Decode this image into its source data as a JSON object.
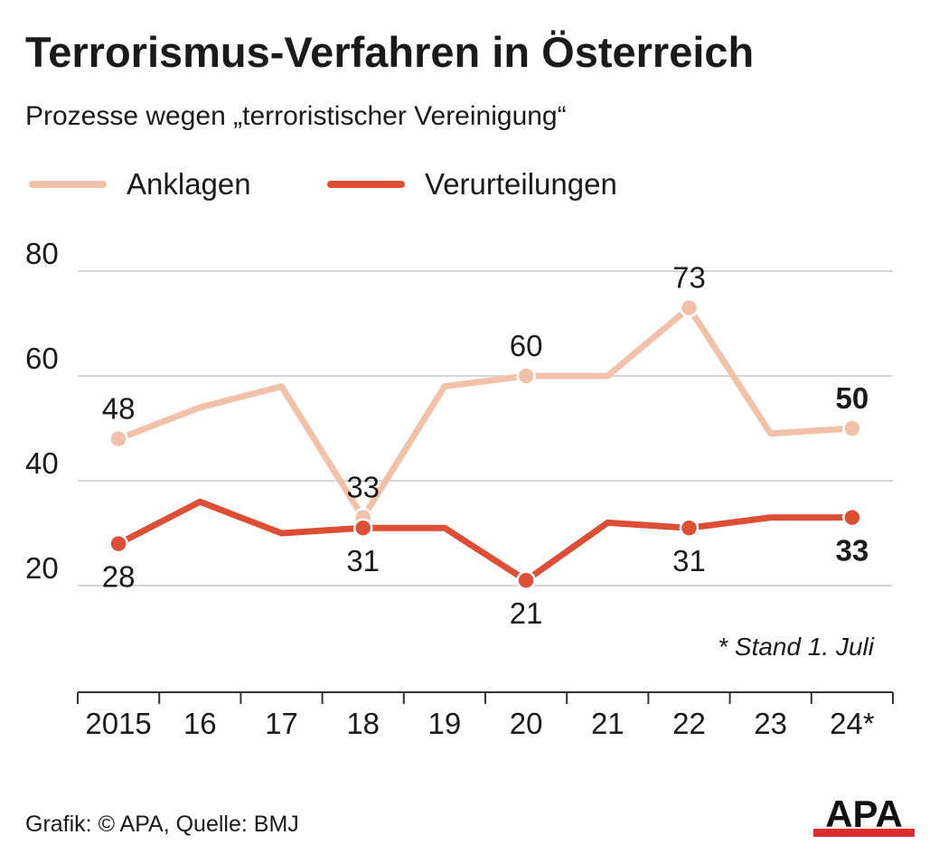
{
  "header": {
    "title": "Terrorismus-Verfahren in Österreich",
    "subtitle": "Prozesse wegen „terroristischer Vereinigung“"
  },
  "colors": {
    "anklagen": "#f2c1aa",
    "verurteilungen": "#dd4f35",
    "grid": "#d6d6d6",
    "axis": "#333333",
    "text": "#1a1a1a"
  },
  "chart_data": {
    "type": "line",
    "title": "Terrorismus-Verfahren in Österreich",
    "subtitle": "Prozesse wegen „terroristischer Vereinigung“",
    "categories": [
      "2015",
      "16",
      "17",
      "18",
      "19",
      "20",
      "21",
      "22",
      "23",
      "24*"
    ],
    "ylim": [
      0,
      80
    ],
    "yticks": [
      20,
      40,
      60,
      80
    ],
    "grid": true,
    "legend_position": "top-left",
    "series": [
      {
        "name": "Anklagen",
        "color": "#f2c1aa",
        "values": [
          48,
          54,
          58,
          33,
          58,
          60,
          60,
          73,
          49,
          50
        ],
        "marked": [
          0,
          3,
          5,
          7,
          9
        ],
        "labels": [
          {
            "index": 0,
            "text": "48",
            "pos": "above",
            "bold": false
          },
          {
            "index": 3,
            "text": "33",
            "pos": "above",
            "bold": false
          },
          {
            "index": 5,
            "text": "60",
            "pos": "above",
            "bold": false
          },
          {
            "index": 7,
            "text": "73",
            "pos": "above",
            "bold": false
          },
          {
            "index": 9,
            "text": "50",
            "pos": "above",
            "bold": true
          }
        ]
      },
      {
        "name": "Verurteilungen",
        "color": "#dd4f35",
        "values": [
          28,
          36,
          30,
          31,
          31,
          21,
          32,
          31,
          33,
          33
        ],
        "marked": [
          0,
          3,
          5,
          7,
          9
        ],
        "labels": [
          {
            "index": 0,
            "text": "28",
            "pos": "below",
            "bold": false
          },
          {
            "index": 3,
            "text": "31",
            "pos": "below",
            "bold": false
          },
          {
            "index": 5,
            "text": "21",
            "pos": "below",
            "bold": false
          },
          {
            "index": 7,
            "text": "31",
            "pos": "below",
            "bold": false
          },
          {
            "index": 9,
            "text": "33",
            "pos": "below",
            "bold": true
          }
        ]
      }
    ],
    "footnote": "* Stand 1. Juli"
  },
  "footer": {
    "source": "Grafik: © APA, Quelle: BMJ",
    "logo_text": "APA"
  }
}
